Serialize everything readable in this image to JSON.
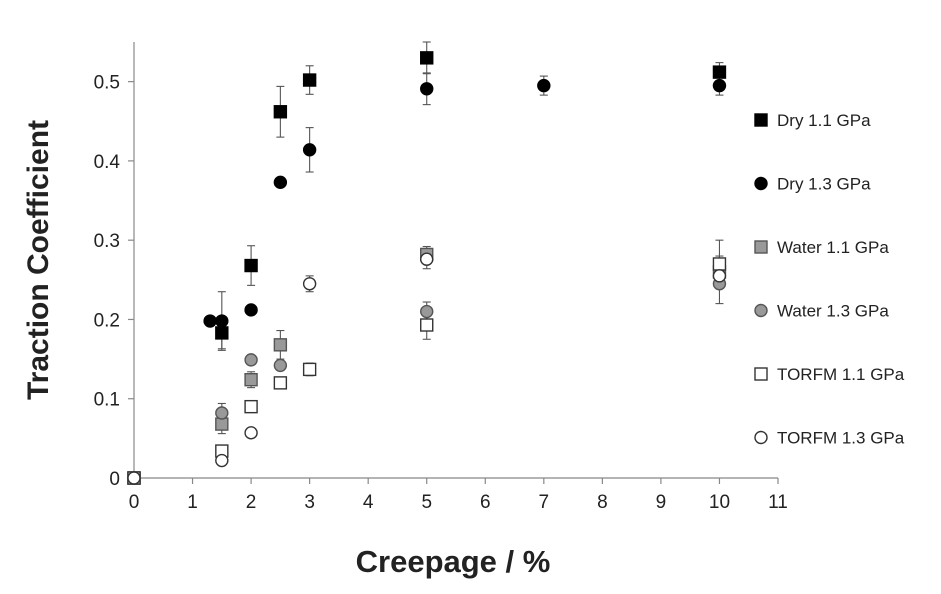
{
  "chart_data": {
    "type": "scatter",
    "title": "",
    "xlabel": "Creepage / %",
    "ylabel": "Traction Coefficient",
    "xlim": [
      0,
      11
    ],
    "ylim": [
      0,
      0.55
    ],
    "xticks": [
      0,
      1,
      2,
      3,
      4,
      5,
      6,
      7,
      8,
      9,
      10,
      11
    ],
    "yticks": [
      0,
      0.1,
      0.2,
      0.3,
      0.4,
      0.5
    ],
    "ytick_labels": [
      "0",
      "0.1",
      "0.2",
      "0.3",
      "0.4",
      "0.5"
    ],
    "grid": false,
    "legend_position": "right",
    "series": [
      {
        "name": "Dry 1.1 GPa",
        "marker": "square",
        "fill": "#000000",
        "stroke": "#000000",
        "points": [
          {
            "x": 0,
            "y": 0
          },
          {
            "x": 1.5,
            "y": 0.183,
            "err": 0.02
          },
          {
            "x": 2,
            "y": 0.268,
            "err": 0.025
          },
          {
            "x": 2.5,
            "y": 0.462,
            "err": 0.032
          },
          {
            "x": 3,
            "y": 0.502,
            "err": 0.018
          },
          {
            "x": 5,
            "y": 0.53,
            "err": 0.02
          },
          {
            "x": 10,
            "y": 0.512,
            "err": 0.012
          }
        ]
      },
      {
        "name": "Dry 1.3 GPa",
        "marker": "circle",
        "fill": "#000000",
        "stroke": "#000000",
        "points": [
          {
            "x": 0,
            "y": 0
          },
          {
            "x": 1.3,
            "y": 0.198
          },
          {
            "x": 1.5,
            "y": 0.198,
            "err": 0.037
          },
          {
            "x": 2,
            "y": 0.212
          },
          {
            "x": 2.5,
            "y": 0.373
          },
          {
            "x": 3,
            "y": 0.414,
            "err": 0.028
          },
          {
            "x": 5,
            "y": 0.491,
            "err": 0.02
          },
          {
            "x": 7,
            "y": 0.495,
            "err": 0.012
          },
          {
            "x": 10,
            "y": 0.495,
            "err": 0.012
          }
        ]
      },
      {
        "name": "Water 1.1 GPa",
        "marker": "square",
        "fill": "#999999",
        "stroke": "#555555",
        "points": [
          {
            "x": 0,
            "y": 0
          },
          {
            "x": 1.5,
            "y": 0.068,
            "err": 0.012
          },
          {
            "x": 2,
            "y": 0.124,
            "err": 0.01
          },
          {
            "x": 2.5,
            "y": 0.168,
            "err": 0.018
          },
          {
            "x": 5,
            "y": 0.282,
            "err": 0.01
          },
          {
            "x": 10,
            "y": 0.26,
            "err": 0.02
          }
        ]
      },
      {
        "name": "Water 1.3 GPa",
        "marker": "circle",
        "fill": "#999999",
        "stroke": "#555555",
        "points": [
          {
            "x": 0,
            "y": 0
          },
          {
            "x": 1.5,
            "y": 0.082,
            "err": 0.012
          },
          {
            "x": 2,
            "y": 0.149
          },
          {
            "x": 2.5,
            "y": 0.142
          },
          {
            "x": 5,
            "y": 0.21,
            "err": 0.012
          },
          {
            "x": 10,
            "y": 0.245,
            "err": 0.025
          }
        ]
      },
      {
        "name": "TORFM 1.1 GPa",
        "marker": "square",
        "fill": "#ffffff",
        "stroke": "#333333",
        "points": [
          {
            "x": 0,
            "y": 0
          },
          {
            "x": 1.5,
            "y": 0.034
          },
          {
            "x": 2,
            "y": 0.09
          },
          {
            "x": 2.5,
            "y": 0.12
          },
          {
            "x": 3,
            "y": 0.137,
            "err": 0.008
          },
          {
            "x": 5,
            "y": 0.193,
            "err": 0.018
          },
          {
            "x": 10,
            "y": 0.27,
            "err": 0.03
          }
        ]
      },
      {
        "name": "TORFM 1.3 GPa",
        "marker": "circle",
        "fill": "#ffffff",
        "stroke": "#333333",
        "points": [
          {
            "x": 0,
            "y": 0
          },
          {
            "x": 1.5,
            "y": 0.022
          },
          {
            "x": 2,
            "y": 0.057
          },
          {
            "x": 3,
            "y": 0.245,
            "err": 0.01
          },
          {
            "x": 5,
            "y": 0.276,
            "err": 0.012
          },
          {
            "x": 10,
            "y": 0.255,
            "err": 0.012
          }
        ]
      }
    ]
  }
}
